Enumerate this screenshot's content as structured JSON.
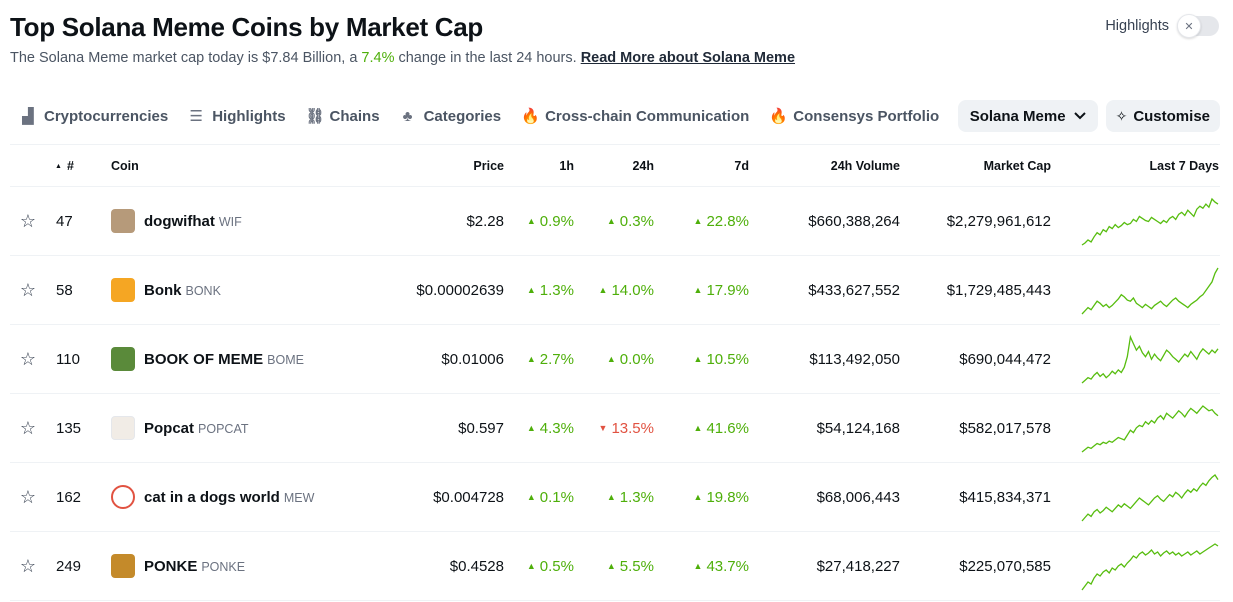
{
  "header": {
    "title": "Top Solana Meme Coins by Market Cap",
    "subtitle_prefix": "The Solana Meme market cap today is $7.84 Billion, a ",
    "subtitle_change": "7.4%",
    "subtitle_suffix": " change in the last 24 hours. ",
    "read_more": "Read More about Solana Meme",
    "highlights_label": "Highlights",
    "highlights_on": false
  },
  "tabs": [
    {
      "label": "Cryptocurrencies",
      "icon": "bar-chart-icon",
      "glyph": "▟"
    },
    {
      "label": "Highlights",
      "icon": "list-icon",
      "glyph": "☰"
    },
    {
      "label": "Chains",
      "icon": "link-icon",
      "glyph": "⛓"
    },
    {
      "label": "Categories",
      "icon": "shapes-icon",
      "glyph": "♣"
    },
    {
      "label": "Cross-chain Communication",
      "icon": "fire-icon",
      "glyph": "🔥"
    },
    {
      "label": "Consensys Portfolio",
      "icon": "fire-icon",
      "glyph": "🔥"
    }
  ],
  "filter": {
    "selected": "Solana Meme"
  },
  "customise_label": "Customise",
  "columns": {
    "rank": "#",
    "coin": "Coin",
    "price": "Price",
    "h1": "1h",
    "h24": "24h",
    "d7": "7d",
    "volume": "24h Volume",
    "mcap": "Market Cap",
    "spark": "Last 7 Days"
  },
  "colors": {
    "up": "#4eaf0a",
    "down": "#e15241",
    "spark": "#57bd0f"
  },
  "rows": [
    {
      "rank": "47",
      "name": "dogwifhat",
      "symbol": "WIF",
      "avatar_color": "#b69a7a",
      "price": "$2.28",
      "h1": "0.9%",
      "h1_dir": "up",
      "h24": "0.3%",
      "h24_dir": "up",
      "d7": "22.8%",
      "d7_dir": "up",
      "volume": "$660,388,264",
      "mcap": "$2,279,961,612",
      "spark": [
        10,
        12,
        15,
        13,
        18,
        22,
        20,
        25,
        23,
        28,
        26,
        30,
        27,
        29,
        32,
        30,
        31,
        35,
        33,
        38,
        36,
        34,
        33,
        37,
        35,
        33,
        31,
        34,
        32,
        36,
        38,
        35,
        40,
        42,
        39,
        44,
        41,
        38,
        45,
        48,
        46,
        50,
        47,
        55,
        52,
        50
      ]
    },
    {
      "rank": "58",
      "name": "Bonk",
      "symbol": "BONK",
      "avatar_color": "#f5a623",
      "price": "$0.00002639",
      "h1": "1.3%",
      "h1_dir": "up",
      "h24": "14.0%",
      "h24_dir": "up",
      "d7": "17.9%",
      "d7_dir": "up",
      "volume": "$433,627,552",
      "mcap": "$1,729,485,443",
      "spark": [
        12,
        15,
        18,
        16,
        20,
        24,
        22,
        19,
        21,
        18,
        20,
        23,
        26,
        30,
        28,
        25,
        24,
        27,
        22,
        20,
        18,
        21,
        19,
        17,
        20,
        22,
        24,
        21,
        19,
        22,
        25,
        27,
        24,
        22,
        20,
        18,
        21,
        23,
        25,
        28,
        30,
        34,
        38,
        42,
        50,
        55
      ]
    },
    {
      "rank": "110",
      "name": "BOOK OF MEME",
      "symbol": "BOME",
      "avatar_color": "#5a8a3a",
      "price": "$0.01006",
      "h1": "2.7%",
      "h1_dir": "up",
      "h24": "0.0%",
      "h24_dir": "up",
      "d7": "10.5%",
      "d7_dir": "up",
      "volume": "$113,492,050",
      "mcap": "$690,044,472",
      "spark": [
        10,
        12,
        14,
        13,
        16,
        18,
        15,
        17,
        14,
        16,
        19,
        17,
        20,
        18,
        22,
        30,
        45,
        40,
        35,
        38,
        33,
        30,
        34,
        28,
        32,
        29,
        27,
        31,
        35,
        33,
        30,
        28,
        26,
        29,
        32,
        30,
        34,
        31,
        28,
        33,
        36,
        34,
        32,
        35,
        33,
        36
      ]
    },
    {
      "rank": "135",
      "name": "Popcat",
      "symbol": "POPCAT",
      "avatar_color": "#f1ece6",
      "price": "$0.597",
      "h1": "4.3%",
      "h1_dir": "up",
      "h24": "13.5%",
      "h24_dir": "down",
      "d7": "41.6%",
      "d7_dir": "up",
      "volume": "$54,124,168",
      "mcap": "$582,017,578",
      "spark": [
        10,
        12,
        14,
        13,
        15,
        17,
        16,
        18,
        17,
        19,
        18,
        20,
        22,
        21,
        20,
        24,
        28,
        26,
        30,
        32,
        31,
        35,
        33,
        36,
        34,
        38,
        40,
        37,
        42,
        40,
        38,
        41,
        44,
        42,
        39,
        43,
        46,
        44,
        42,
        45,
        48,
        46,
        44,
        45,
        42,
        40
      ]
    },
    {
      "rank": "162",
      "name": "cat in a dogs world",
      "symbol": "MEW",
      "avatar_color": "#ffffff",
      "price": "$0.004728",
      "h1": "0.1%",
      "h1_dir": "up",
      "h24": "1.3%",
      "h24_dir": "up",
      "d7": "19.8%",
      "d7_dir": "up",
      "volume": "$68,006,443",
      "mcap": "$415,834,371",
      "spark": [
        10,
        13,
        16,
        14,
        18,
        20,
        17,
        19,
        22,
        20,
        18,
        21,
        24,
        22,
        25,
        23,
        21,
        24,
        27,
        30,
        28,
        26,
        24,
        27,
        30,
        32,
        29,
        27,
        30,
        33,
        31,
        35,
        33,
        30,
        34,
        37,
        35,
        38,
        36,
        40,
        43,
        41,
        45,
        48,
        50,
        46
      ]
    },
    {
      "rank": "249",
      "name": "PONKE",
      "symbol": "PONKE",
      "avatar_color": "#c48a2a",
      "price": "$0.4528",
      "h1": "0.5%",
      "h1_dir": "up",
      "h24": "5.5%",
      "h24_dir": "up",
      "d7": "43.7%",
      "d7_dir": "up",
      "volume": "$27,418,227",
      "mcap": "$225,070,585",
      "spark": [
        8,
        12,
        16,
        14,
        20,
        24,
        22,
        26,
        28,
        25,
        30,
        28,
        32,
        34,
        31,
        35,
        38,
        42,
        40,
        44,
        46,
        43,
        45,
        48,
        44,
        46,
        42,
        45,
        47,
        44,
        46,
        43,
        45,
        42,
        44,
        46,
        43,
        45,
        47,
        44,
        46,
        48,
        50,
        52,
        54,
        52
      ]
    }
  ]
}
